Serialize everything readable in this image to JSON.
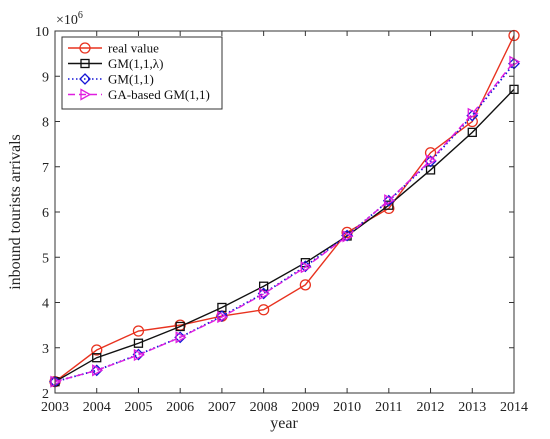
{
  "chart_data": {
    "type": "line",
    "xlabel": "year",
    "ylabel": "inbound tourists arrivals",
    "y_multiplier_label": "×10",
    "y_multiplier_exp": "6",
    "x": [
      2003,
      2004,
      2005,
      2006,
      2007,
      2008,
      2009,
      2010,
      2011,
      2012,
      2013,
      2014
    ],
    "x_tick_labels": [
      "2003",
      "2004",
      "2005",
      "2006",
      "2007",
      "2008",
      "2009",
      "2010",
      "2011",
      "2012",
      "2013",
      "2014"
    ],
    "y_tick_labels": [
      "2",
      "3",
      "4",
      "5",
      "6",
      "7",
      "8",
      "9",
      "10"
    ],
    "xlim": [
      2003,
      2014
    ],
    "ylim": [
      2,
      10
    ],
    "y_ticks": [
      2,
      3,
      4,
      5,
      6,
      7,
      8,
      9,
      10
    ],
    "legend_position": "top-left",
    "series": [
      {
        "name": "real value",
        "color": "#e8321f",
        "dash": "solid",
        "marker": "circle",
        "values": [
          2.25,
          2.95,
          3.37,
          3.5,
          3.7,
          3.84,
          4.39,
          5.55,
          6.08,
          7.31,
          8.0,
          9.9
        ]
      },
      {
        "name": "GM(1,1,λ)",
        "color": "#111111",
        "dash": "solid",
        "marker": "square",
        "values": [
          2.25,
          2.78,
          3.1,
          3.47,
          3.89,
          4.36,
          4.88,
          5.47,
          6.15,
          6.93,
          7.76,
          8.71
        ]
      },
      {
        "name": "GM(1,1)",
        "color": "#1515d6",
        "dash": "dotted",
        "marker": "diamond",
        "values": [
          2.25,
          2.5,
          2.85,
          3.23,
          3.7,
          4.2,
          4.8,
          5.48,
          6.25,
          7.12,
          8.13,
          9.28
        ]
      },
      {
        "name": "GA-based GM(1,1)",
        "color": "#e01ee0",
        "dash": "dashed",
        "marker": "triangle-right",
        "values": [
          2.25,
          2.5,
          2.84,
          3.23,
          3.68,
          4.19,
          4.78,
          5.46,
          6.26,
          7.14,
          8.17,
          9.32
        ]
      }
    ]
  }
}
